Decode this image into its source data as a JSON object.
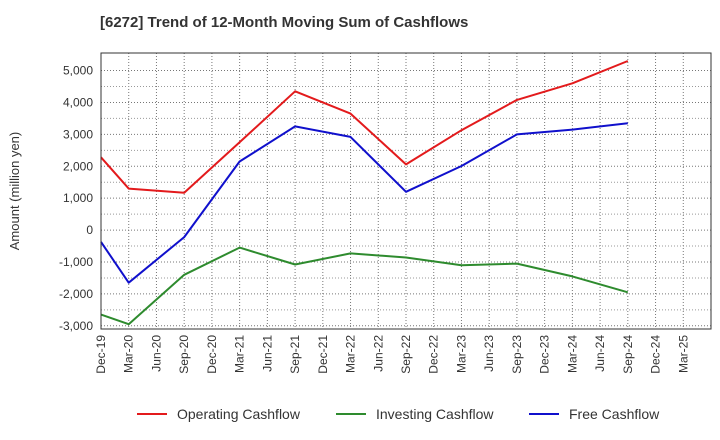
{
  "chart_data": {
    "type": "line",
    "title": "[6272]  Trend of 12-Month Moving Sum of Cashflows",
    "xlabel": "",
    "ylabel": "Amount (million yen)",
    "categories": [
      "Dec-19",
      "Mar-20",
      "Jun-20",
      "Sep-20",
      "Dec-20",
      "Mar-21",
      "Jun-21",
      "Sep-21",
      "Dec-21",
      "Mar-22",
      "Jun-22",
      "Sep-22",
      "Dec-22",
      "Mar-23",
      "Jun-23",
      "Sep-23",
      "Dec-23",
      "Mar-24",
      "Jun-24",
      "Sep-24",
      "Dec-24",
      "Mar-25"
    ],
    "ylim": [
      -3100,
      5550
    ],
    "yticks": [
      -3000,
      -2000,
      -1000,
      0,
      1000,
      2000,
      3000,
      4000,
      5000
    ],
    "ytick_labels": [
      "-3,000",
      "-2,000",
      "-1,000",
      "0",
      "1,000",
      "2,000",
      "3,000",
      "4,000",
      "5,000"
    ],
    "grid": true,
    "legend_position": "bottom",
    "series": [
      {
        "name": "Operating Cashflow",
        "color": "#e31a1c",
        "values": [
          2280,
          1300,
          null,
          1170,
          null,
          2750,
          null,
          4350,
          null,
          3650,
          null,
          2060,
          null,
          3130,
          null,
          4080,
          null,
          4600,
          null,
          5300,
          null,
          null
        ]
      },
      {
        "name": "Investing Cashflow",
        "color": "#2e8b2e",
        "values": [
          -2650,
          -2950,
          null,
          -1400,
          null,
          -550,
          null,
          -1080,
          null,
          -730,
          null,
          -860,
          null,
          -1100,
          null,
          -1050,
          null,
          -1450,
          null,
          -1950,
          null,
          null
        ]
      },
      {
        "name": "Free Cashflow",
        "color": "#1010cc",
        "values": [
          -370,
          -1650,
          null,
          -220,
          null,
          2150,
          null,
          3250,
          null,
          2920,
          null,
          1200,
          null,
          2010,
          null,
          3000,
          null,
          3150,
          null,
          3350,
          null,
          null
        ]
      }
    ]
  }
}
